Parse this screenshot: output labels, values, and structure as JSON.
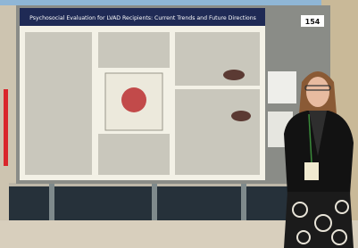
{
  "poster": {
    "title": "Psychosocial Evaluation for LVAD Recipients: Current Trends and Future Directions",
    "board_number": "154"
  }
}
